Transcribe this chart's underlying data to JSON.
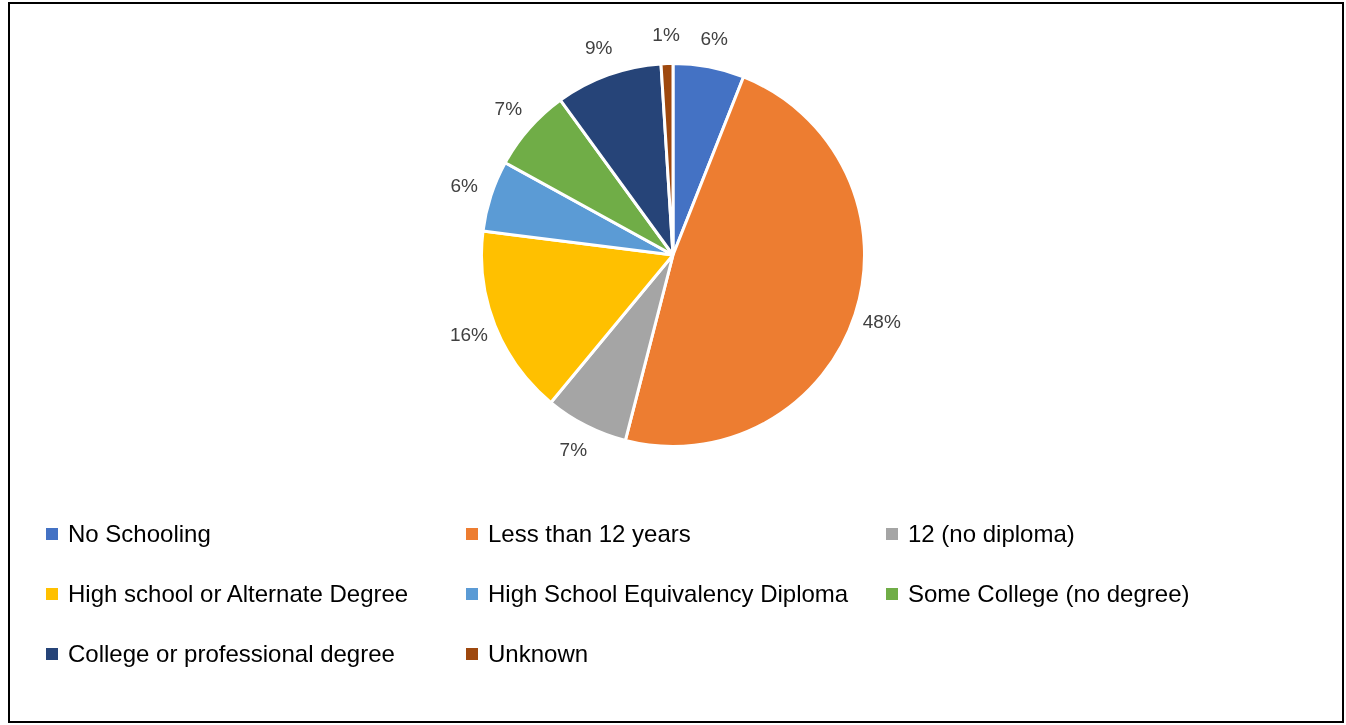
{
  "chart_data": {
    "type": "pie",
    "categories": [
      "No Schooling",
      "Less than 12 years",
      "12 (no diploma)",
      "High school or Alternate Degree",
      "High School Equivalency Diploma",
      "Some College (no degree)",
      "College or professional degree",
      "Unknown"
    ],
    "values": [
      6,
      48,
      7,
      16,
      6,
      7,
      9,
      1
    ],
    "colors": [
      "#4472c4",
      "#ed7d31",
      "#a5a5a5",
      "#ffc000",
      "#5b9bd5",
      "#70ad47",
      "#264478",
      "#9e480e"
    ],
    "value_labels": [
      "6%",
      "48%",
      "7%",
      "16%",
      "6%",
      "7%",
      "9%",
      "1%"
    ],
    "legend": "bottom"
  }
}
